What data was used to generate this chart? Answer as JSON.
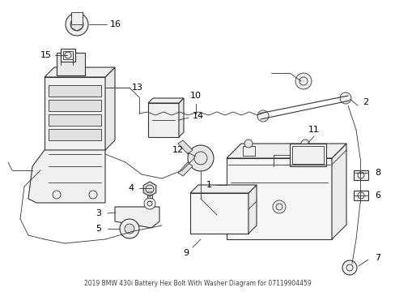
{
  "title": "2019 BMW 430i Battery Hex Bolt With Washer Diagram for 07119904459",
  "bg_color": "#ffffff",
  "line_color": "#333333",
  "label_color": "#000000",
  "fig_w": 4.89,
  "fig_h": 3.6,
  "dpi": 100
}
